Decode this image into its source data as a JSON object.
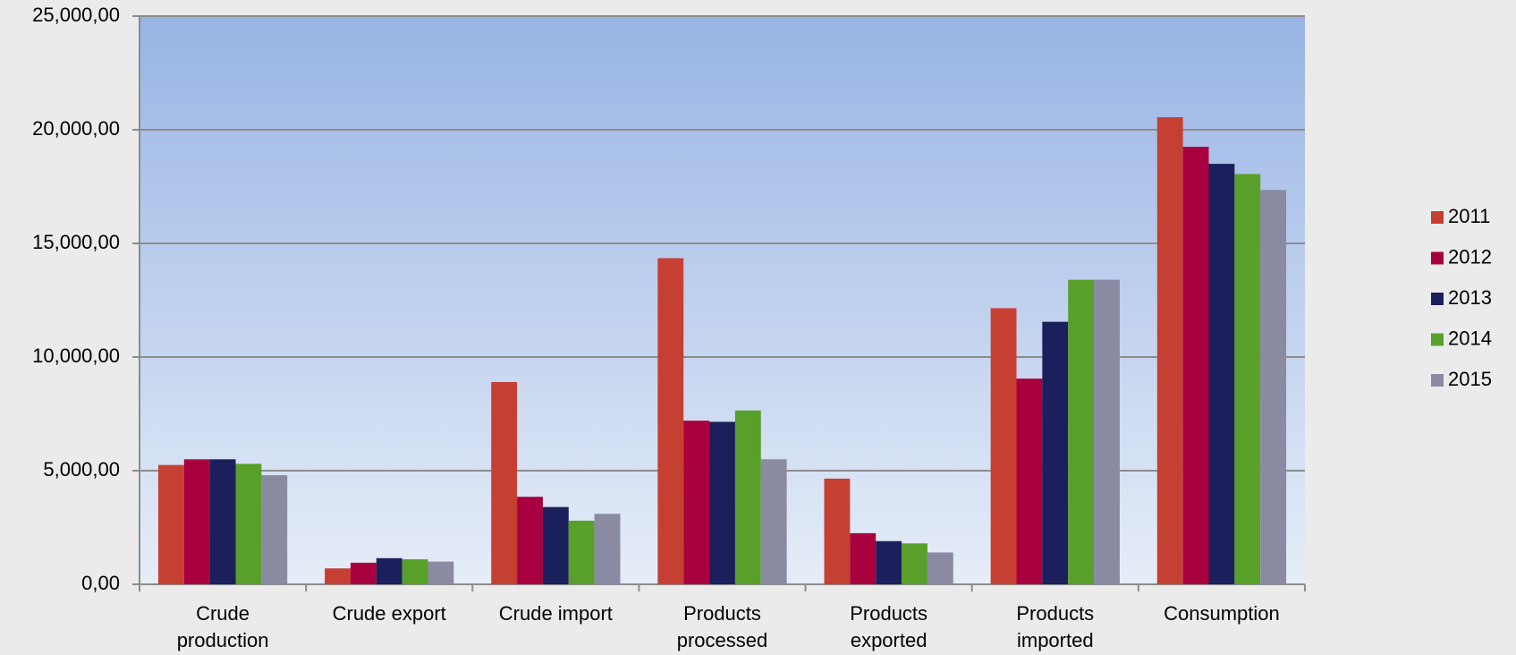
{
  "chart_data": {
    "type": "bar",
    "categories": [
      "Crude production",
      "Crude export",
      "Crude import",
      "Products processed",
      "Products exported",
      "Products imported",
      "Consumption"
    ],
    "series": [
      {
        "name": "2011",
        "color": "#c63f33",
        "values": [
          5250,
          700,
          8900,
          14350,
          4650,
          12150,
          20550
        ]
      },
      {
        "name": "2012",
        "color": "#a8003e",
        "values": [
          5500,
          950,
          3850,
          7200,
          2250,
          9050,
          19250
        ]
      },
      {
        "name": "2013",
        "color": "#1b1f5c",
        "values": [
          5500,
          1150,
          3400,
          7150,
          1900,
          11550,
          18500
        ]
      },
      {
        "name": "2014",
        "color": "#58a02a",
        "values": [
          5300,
          1100,
          2800,
          7650,
          1800,
          13400,
          18050
        ]
      },
      {
        "name": "2015",
        "color": "#8a8aa3",
        "values": [
          4800,
          1000,
          3100,
          5500,
          1400,
          13400,
          17350
        ]
      }
    ],
    "ylim": [
      0,
      25000
    ],
    "yticks": [
      {
        "value": 0,
        "label": "0,00"
      },
      {
        "value": 5000,
        "label": "5,000,00"
      },
      {
        "value": 10000,
        "label": "10,000,00"
      },
      {
        "value": 15000,
        "label": "15,000,00"
      },
      {
        "value": 20000,
        "label": "20,000,00"
      },
      {
        "value": 25000,
        "label": "25,000,00"
      }
    ],
    "grid": true,
    "legend": "right"
  }
}
